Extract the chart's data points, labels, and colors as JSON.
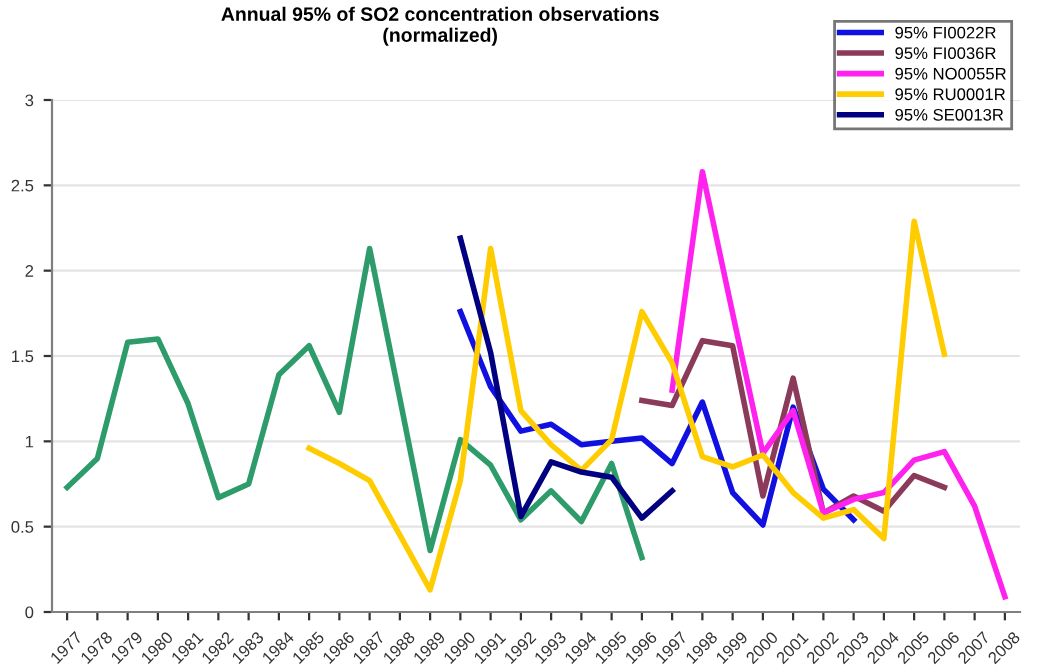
{
  "chart_data": {
    "type": "line",
    "title": "Annual 95% of SO2 concentration observations\n(normalized)",
    "categories": [
      "1977",
      "1978",
      "1979",
      "1980",
      "1981",
      "1982",
      "1983",
      "1984",
      "1985",
      "1986",
      "1987",
      "1988",
      "1989",
      "1990",
      "1991",
      "1992",
      "1993",
      "1994",
      "1995",
      "1996",
      "1997",
      "1998",
      "1999",
      "2000",
      "2001",
      "2002",
      "2003",
      "2004",
      "2005",
      "2006",
      "2007",
      "2008"
    ],
    "series": [
      {
        "color": "#2e9b6a",
        "values": [
          0.73,
          0.9,
          1.58,
          1.6,
          1.22,
          0.67,
          0.75,
          1.39,
          1.56,
          1.17,
          2.13,
          1.25,
          0.36,
          1.01,
          0.86,
          0.54,
          0.71,
          0.53,
          0.87,
          0.32,
          null,
          null,
          null,
          null,
          null,
          null,
          null,
          null,
          null,
          null,
          null,
          null
        ]
      },
      {
        "name": "95% FI0022R",
        "color": "#1010e0",
        "values": [
          null,
          null,
          null,
          null,
          null,
          null,
          null,
          null,
          null,
          null,
          null,
          null,
          null,
          1.76,
          1.32,
          1.06,
          1.1,
          0.98,
          1.0,
          1.02,
          0.87,
          1.23,
          0.7,
          0.51,
          1.2,
          0.72,
          0.54,
          null,
          null,
          null,
          null,
          null
        ]
      },
      {
        "name": "95% FI0036R",
        "color": "#8b3a5a",
        "values": [
          null,
          null,
          null,
          null,
          null,
          null,
          null,
          null,
          null,
          null,
          null,
          null,
          null,
          null,
          null,
          null,
          null,
          null,
          null,
          1.24,
          1.21,
          1.59,
          1.56,
          0.68,
          1.37,
          0.58,
          0.68,
          0.59,
          0.8,
          0.73,
          null,
          null
        ]
      },
      {
        "name": "95% NO0055R",
        "color": "#ff22ee",
        "values": [
          null,
          null,
          null,
          null,
          null,
          null,
          null,
          null,
          null,
          null,
          null,
          null,
          null,
          null,
          null,
          null,
          null,
          null,
          null,
          null,
          1.3,
          2.58,
          1.75,
          0.93,
          1.18,
          0.58,
          0.66,
          0.7,
          0.89,
          0.94,
          0.62,
          0.09
        ]
      },
      {
        "name": "95% RU0001R",
        "color": "#ffcc00",
        "values": [
          null,
          null,
          null,
          null,
          null,
          null,
          null,
          null,
          0.96,
          0.87,
          0.77,
          0.45,
          0.13,
          0.77,
          2.13,
          1.18,
          0.98,
          0.83,
          1.01,
          1.76,
          1.46,
          0.91,
          0.85,
          0.92,
          0.7,
          0.55,
          0.6,
          0.43,
          2.29,
          1.51,
          null,
          null
        ]
      },
      {
        "name": "95% SE0013R",
        "color": "#000080",
        "values": [
          null,
          null,
          null,
          null,
          null,
          null,
          null,
          null,
          null,
          null,
          null,
          null,
          null,
          2.19,
          1.52,
          0.56,
          0.88,
          0.82,
          0.79,
          0.55,
          0.71,
          null,
          null,
          null,
          null,
          null,
          null,
          null,
          null,
          null,
          null,
          null
        ]
      }
    ],
    "ylim": [
      0,
      3
    ],
    "yticks": [
      0,
      0.5,
      1,
      1.5,
      2,
      2.5,
      3
    ],
    "grid": "y",
    "legend": "top right"
  }
}
